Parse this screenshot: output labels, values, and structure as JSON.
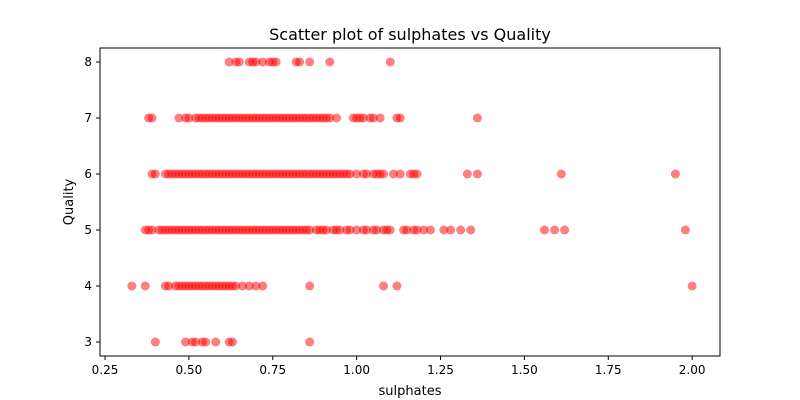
{
  "chart_data": {
    "type": "scatter",
    "title": "Scatter plot of sulphates vs Quality",
    "xlabel": "sulphates",
    "ylabel": "Quality",
    "xlim": [
      0.235,
      2.083
    ],
    "ylim": [
      2.75,
      8.25
    ],
    "xticks": [
      "0.25",
      "0.50",
      "0.75",
      "1.00",
      "1.25",
      "1.50",
      "1.75",
      "2.00"
    ],
    "yticks": [
      "3",
      "4",
      "5",
      "6",
      "7",
      "8"
    ],
    "grid": false,
    "marker_color": "#ff0000",
    "marker_alpha": 0.5,
    "points": [
      [
        0.62,
        8
      ],
      [
        0.64,
        8
      ],
      [
        0.65,
        8
      ],
      [
        0.68,
        8
      ],
      [
        0.69,
        8
      ],
      [
        0.7,
        8
      ],
      [
        0.72,
        8
      ],
      [
        0.74,
        8
      ],
      [
        0.75,
        8
      ],
      [
        0.76,
        8
      ],
      [
        0.82,
        8
      ],
      [
        0.83,
        8
      ],
      [
        0.86,
        8
      ],
      [
        0.92,
        8
      ],
      [
        1.1,
        8
      ],
      [
        0.38,
        7
      ],
      [
        0.39,
        7
      ],
      [
        0.47,
        7
      ],
      [
        0.49,
        7
      ],
      [
        0.5,
        7
      ],
      [
        0.52,
        7
      ],
      [
        0.53,
        7
      ],
      [
        0.54,
        7
      ],
      [
        0.55,
        7
      ],
      [
        0.56,
        7
      ],
      [
        0.57,
        7
      ],
      [
        0.58,
        7
      ],
      [
        0.59,
        7
      ],
      [
        0.6,
        7
      ],
      [
        0.61,
        7
      ],
      [
        0.62,
        7
      ],
      [
        0.63,
        7
      ],
      [
        0.64,
        7
      ],
      [
        0.65,
        7
      ],
      [
        0.66,
        7
      ],
      [
        0.67,
        7
      ],
      [
        0.68,
        7
      ],
      [
        0.69,
        7
      ],
      [
        0.7,
        7
      ],
      [
        0.71,
        7
      ],
      [
        0.72,
        7
      ],
      [
        0.73,
        7
      ],
      [
        0.74,
        7
      ],
      [
        0.75,
        7
      ],
      [
        0.76,
        7
      ],
      [
        0.77,
        7
      ],
      [
        0.78,
        7
      ],
      [
        0.79,
        7
      ],
      [
        0.8,
        7
      ],
      [
        0.81,
        7
      ],
      [
        0.82,
        7
      ],
      [
        0.83,
        7
      ],
      [
        0.84,
        7
      ],
      [
        0.85,
        7
      ],
      [
        0.86,
        7
      ],
      [
        0.87,
        7
      ],
      [
        0.88,
        7
      ],
      [
        0.89,
        7
      ],
      [
        0.9,
        7
      ],
      [
        0.91,
        7
      ],
      [
        0.92,
        7
      ],
      [
        0.94,
        7
      ],
      [
        0.99,
        7
      ],
      [
        1.0,
        7
      ],
      [
        1.01,
        7
      ],
      [
        1.02,
        7
      ],
      [
        1.04,
        7
      ],
      [
        1.05,
        7
      ],
      [
        1.07,
        7
      ],
      [
        1.12,
        7
      ],
      [
        1.13,
        7
      ],
      [
        1.36,
        7
      ],
      [
        0.39,
        6
      ],
      [
        0.4,
        6
      ],
      [
        0.43,
        6
      ],
      [
        0.44,
        6
      ],
      [
        0.45,
        6
      ],
      [
        0.46,
        6
      ],
      [
        0.47,
        6
      ],
      [
        0.48,
        6
      ],
      [
        0.49,
        6
      ],
      [
        0.5,
        6
      ],
      [
        0.51,
        6
      ],
      [
        0.52,
        6
      ],
      [
        0.53,
        6
      ],
      [
        0.54,
        6
      ],
      [
        0.55,
        6
      ],
      [
        0.56,
        6
      ],
      [
        0.57,
        6
      ],
      [
        0.58,
        6
      ],
      [
        0.59,
        6
      ],
      [
        0.6,
        6
      ],
      [
        0.61,
        6
      ],
      [
        0.62,
        6
      ],
      [
        0.63,
        6
      ],
      [
        0.64,
        6
      ],
      [
        0.65,
        6
      ],
      [
        0.66,
        6
      ],
      [
        0.67,
        6
      ],
      [
        0.68,
        6
      ],
      [
        0.69,
        6
      ],
      [
        0.7,
        6
      ],
      [
        0.71,
        6
      ],
      [
        0.72,
        6
      ],
      [
        0.73,
        6
      ],
      [
        0.74,
        6
      ],
      [
        0.75,
        6
      ],
      [
        0.76,
        6
      ],
      [
        0.77,
        6
      ],
      [
        0.78,
        6
      ],
      [
        0.79,
        6
      ],
      [
        0.8,
        6
      ],
      [
        0.81,
        6
      ],
      [
        0.82,
        6
      ],
      [
        0.83,
        6
      ],
      [
        0.84,
        6
      ],
      [
        0.85,
        6
      ],
      [
        0.86,
        6
      ],
      [
        0.87,
        6
      ],
      [
        0.88,
        6
      ],
      [
        0.89,
        6
      ],
      [
        0.9,
        6
      ],
      [
        0.91,
        6
      ],
      [
        0.92,
        6
      ],
      [
        0.93,
        6
      ],
      [
        0.94,
        6
      ],
      [
        0.95,
        6
      ],
      [
        0.96,
        6
      ],
      [
        0.97,
        6
      ],
      [
        0.98,
        6
      ],
      [
        1.0,
        6
      ],
      [
        1.02,
        6
      ],
      [
        1.03,
        6
      ],
      [
        1.05,
        6
      ],
      [
        1.06,
        6
      ],
      [
        1.07,
        6
      ],
      [
        1.08,
        6
      ],
      [
        1.11,
        6
      ],
      [
        1.13,
        6
      ],
      [
        1.16,
        6
      ],
      [
        1.17,
        6
      ],
      [
        1.18,
        6
      ],
      [
        1.33,
        6
      ],
      [
        1.36,
        6
      ],
      [
        1.61,
        6
      ],
      [
        1.95,
        6
      ],
      [
        0.37,
        5
      ],
      [
        0.38,
        5
      ],
      [
        0.39,
        5
      ],
      [
        0.41,
        5
      ],
      [
        0.42,
        5
      ],
      [
        0.43,
        5
      ],
      [
        0.44,
        5
      ],
      [
        0.45,
        5
      ],
      [
        0.46,
        5
      ],
      [
        0.47,
        5
      ],
      [
        0.48,
        5
      ],
      [
        0.49,
        5
      ],
      [
        0.5,
        5
      ],
      [
        0.51,
        5
      ],
      [
        0.52,
        5
      ],
      [
        0.53,
        5
      ],
      [
        0.54,
        5
      ],
      [
        0.55,
        5
      ],
      [
        0.56,
        5
      ],
      [
        0.57,
        5
      ],
      [
        0.58,
        5
      ],
      [
        0.59,
        5
      ],
      [
        0.6,
        5
      ],
      [
        0.61,
        5
      ],
      [
        0.62,
        5
      ],
      [
        0.63,
        5
      ],
      [
        0.64,
        5
      ],
      [
        0.65,
        5
      ],
      [
        0.66,
        5
      ],
      [
        0.67,
        5
      ],
      [
        0.68,
        5
      ],
      [
        0.69,
        5
      ],
      [
        0.7,
        5
      ],
      [
        0.71,
        5
      ],
      [
        0.72,
        5
      ],
      [
        0.73,
        5
      ],
      [
        0.74,
        5
      ],
      [
        0.75,
        5
      ],
      [
        0.76,
        5
      ],
      [
        0.77,
        5
      ],
      [
        0.78,
        5
      ],
      [
        0.79,
        5
      ],
      [
        0.8,
        5
      ],
      [
        0.81,
        5
      ],
      [
        0.82,
        5
      ],
      [
        0.83,
        5
      ],
      [
        0.84,
        5
      ],
      [
        0.85,
        5
      ],
      [
        0.86,
        5
      ],
      [
        0.88,
        5
      ],
      [
        0.89,
        5
      ],
      [
        0.9,
        5
      ],
      [
        0.91,
        5
      ],
      [
        0.93,
        5
      ],
      [
        0.94,
        5
      ],
      [
        0.95,
        5
      ],
      [
        0.97,
        5
      ],
      [
        0.98,
        5
      ],
      [
        1.0,
        5
      ],
      [
        1.02,
        5
      ],
      [
        1.03,
        5
      ],
      [
        1.05,
        5
      ],
      [
        1.06,
        5
      ],
      [
        1.08,
        5
      ],
      [
        1.09,
        5
      ],
      [
        1.1,
        5
      ],
      [
        1.14,
        5
      ],
      [
        1.15,
        5
      ],
      [
        1.17,
        5
      ],
      [
        1.18,
        5
      ],
      [
        1.2,
        5
      ],
      [
        1.22,
        5
      ],
      [
        1.26,
        5
      ],
      [
        1.28,
        5
      ],
      [
        1.31,
        5
      ],
      [
        1.34,
        5
      ],
      [
        1.56,
        5
      ],
      [
        1.59,
        5
      ],
      [
        1.62,
        5
      ],
      [
        1.98,
        5
      ],
      [
        0.33,
        4
      ],
      [
        0.37,
        4
      ],
      [
        0.43,
        4
      ],
      [
        0.44,
        4
      ],
      [
        0.46,
        4
      ],
      [
        0.47,
        4
      ],
      [
        0.48,
        4
      ],
      [
        0.49,
        4
      ],
      [
        0.5,
        4
      ],
      [
        0.51,
        4
      ],
      [
        0.52,
        4
      ],
      [
        0.53,
        4
      ],
      [
        0.54,
        4
      ],
      [
        0.55,
        4
      ],
      [
        0.56,
        4
      ],
      [
        0.57,
        4
      ],
      [
        0.58,
        4
      ],
      [
        0.59,
        4
      ],
      [
        0.6,
        4
      ],
      [
        0.61,
        4
      ],
      [
        0.62,
        4
      ],
      [
        0.63,
        4
      ],
      [
        0.64,
        4
      ],
      [
        0.66,
        4
      ],
      [
        0.68,
        4
      ],
      [
        0.7,
        4
      ],
      [
        0.72,
        4
      ],
      [
        0.86,
        4
      ],
      [
        1.08,
        4
      ],
      [
        1.12,
        4
      ],
      [
        2.0,
        4
      ],
      [
        0.4,
        3
      ],
      [
        0.49,
        3
      ],
      [
        0.51,
        3
      ],
      [
        0.52,
        3
      ],
      [
        0.54,
        3
      ],
      [
        0.55,
        3
      ],
      [
        0.58,
        3
      ],
      [
        0.62,
        3
      ],
      [
        0.63,
        3
      ],
      [
        0.86,
        3
      ]
    ]
  }
}
